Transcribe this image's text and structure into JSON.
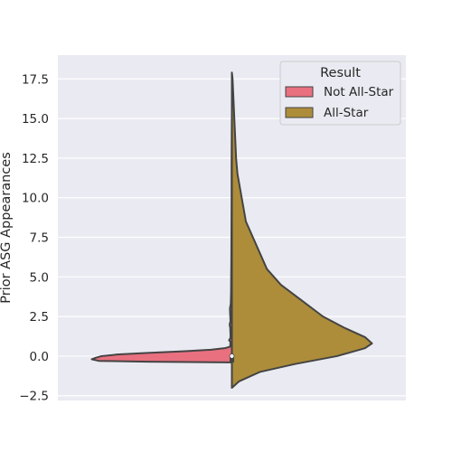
{
  "chart_data": {
    "type": "violin",
    "split": true,
    "title": "",
    "xlabel": "",
    "ylabel": "Prior ASG Appearances",
    "ylim": [
      -2.8,
      19.0
    ],
    "yticks": [
      -2.5,
      0.0,
      2.5,
      5.0,
      7.5,
      10.0,
      12.5,
      15.0,
      17.5
    ],
    "ytick_labels": [
      "−2.5",
      "0.0",
      "2.5",
      "5.0",
      "7.5",
      "10.0",
      "12.5",
      "15.0",
      "17.5"
    ],
    "grid": true,
    "legend": {
      "title": "Result",
      "placement": "top-right"
    },
    "series": [
      {
        "name": "Not All-Star",
        "side": "left",
        "color": "#e9707f",
        "range": [
          -0.4,
          15.3
        ],
        "median": 0.0,
        "density": [
          [
            -0.4,
            0.0
          ],
          [
            -0.35,
            0.6
          ],
          [
            -0.3,
            0.95
          ],
          [
            -0.2,
            1.0
          ],
          [
            -0.1,
            0.97
          ],
          [
            0.0,
            0.93
          ],
          [
            0.1,
            0.82
          ],
          [
            0.2,
            0.6
          ],
          [
            0.3,
            0.35
          ],
          [
            0.4,
            0.15
          ],
          [
            0.5,
            0.05
          ],
          [
            0.6,
            0.012
          ],
          [
            0.9,
            0.01
          ],
          [
            1.0,
            0.02
          ],
          [
            1.15,
            0.01
          ],
          [
            1.4,
            0.01
          ],
          [
            1.8,
            0.012
          ],
          [
            2.0,
            0.016
          ],
          [
            2.2,
            0.01
          ],
          [
            2.6,
            0.012
          ],
          [
            3.0,
            0.014
          ],
          [
            3.3,
            0.008
          ],
          [
            4.0,
            0.006
          ],
          [
            5.0,
            0.005
          ],
          [
            6.0,
            0.004
          ],
          [
            8.0,
            0.003
          ],
          [
            10.0,
            0.002
          ],
          [
            12.0,
            0.002
          ],
          [
            14.0,
            0.001
          ],
          [
            15.3,
            0.0
          ]
        ]
      },
      {
        "name": "All-Star",
        "side": "right",
        "color": "#ad8d3a",
        "range": [
          -2.0,
          17.9
        ],
        "median": 1.0,
        "density": [
          [
            -2.0,
            0.0
          ],
          [
            -1.6,
            0.05
          ],
          [
            -1.0,
            0.2
          ],
          [
            -0.5,
            0.45
          ],
          [
            0.0,
            0.75
          ],
          [
            0.5,
            0.95
          ],
          [
            0.8,
            1.0
          ],
          [
            1.2,
            0.95
          ],
          [
            1.8,
            0.8
          ],
          [
            2.5,
            0.65
          ],
          [
            3.5,
            0.5
          ],
          [
            4.5,
            0.35
          ],
          [
            5.5,
            0.25
          ],
          [
            6.5,
            0.2
          ],
          [
            7.5,
            0.15
          ],
          [
            8.5,
            0.1
          ],
          [
            9.5,
            0.08
          ],
          [
            10.5,
            0.06
          ],
          [
            11.5,
            0.04
          ],
          [
            12.5,
            0.03
          ],
          [
            13.5,
            0.025
          ],
          [
            14.5,
            0.02
          ],
          [
            15.5,
            0.015
          ],
          [
            16.5,
            0.01
          ],
          [
            17.5,
            0.005
          ],
          [
            17.9,
            0.0
          ]
        ]
      }
    ],
    "quartile_box": {
      "q1": -0.4,
      "q3": 0.0,
      "median": 0.0
    },
    "colors": {
      "plot_bg": "#eaeaf2",
      "grid": "#ffffff",
      "outline": "#444444",
      "text": "#262626"
    }
  }
}
